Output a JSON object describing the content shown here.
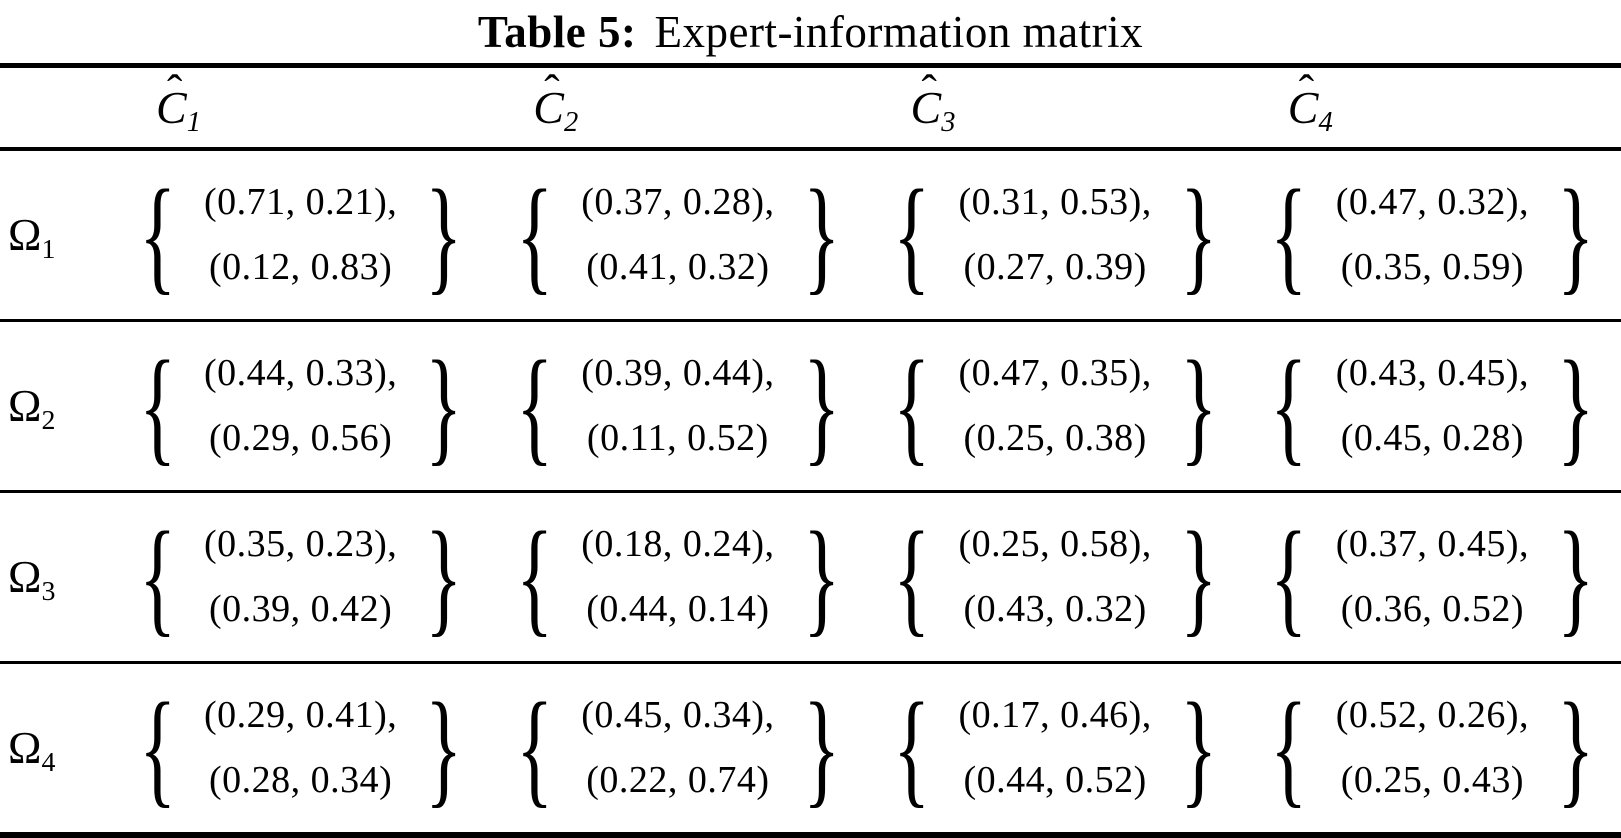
{
  "title": {
    "tag": "Table 5:",
    "text": "Expert-information matrix"
  },
  "colors": {
    "text": "#000000",
    "background": "#ffffff",
    "rule": "#000000"
  },
  "table": {
    "brace_open": "{",
    "brace_close": "}",
    "columns": [
      {
        "base": "C",
        "hat": "ˆ",
        "sub": "1"
      },
      {
        "base": "C",
        "hat": "ˆ",
        "sub": "2"
      },
      {
        "base": "C",
        "hat": "ˆ",
        "sub": "3"
      },
      {
        "base": "C",
        "hat": "ˆ",
        "sub": "4"
      }
    ],
    "rows": [
      {
        "label": {
          "base": "Ω",
          "sub": "1"
        },
        "cells": [
          {
            "line1": "(0.71, 0.21),",
            "line2": "(0.12, 0.83)"
          },
          {
            "line1": "(0.37, 0.28),",
            "line2": "(0.41, 0.32)"
          },
          {
            "line1": "(0.31, 0.53),",
            "line2": "(0.27, 0.39)"
          },
          {
            "line1": "(0.47, 0.32),",
            "line2": "(0.35, 0.59)"
          }
        ]
      },
      {
        "label": {
          "base": "Ω",
          "sub": "2"
        },
        "cells": [
          {
            "line1": "(0.44, 0.33),",
            "line2": "(0.29, 0.56)"
          },
          {
            "line1": "(0.39, 0.44),",
            "line2": "(0.11, 0.52)"
          },
          {
            "line1": "(0.47, 0.35),",
            "line2": "(0.25, 0.38)"
          },
          {
            "line1": "(0.43, 0.45),",
            "line2": "(0.45, 0.28)"
          }
        ]
      },
      {
        "label": {
          "base": "Ω",
          "sub": "3"
        },
        "cells": [
          {
            "line1": "(0.35, 0.23),",
            "line2": "(0.39, 0.42)"
          },
          {
            "line1": "(0.18, 0.24),",
            "line2": "(0.44, 0.14)"
          },
          {
            "line1": "(0.25, 0.58),",
            "line2": "(0.43, 0.32)"
          },
          {
            "line1": "(0.37, 0.45),",
            "line2": "(0.36, 0.52)"
          }
        ]
      },
      {
        "label": {
          "base": "Ω",
          "sub": "4"
        },
        "cells": [
          {
            "line1": "(0.29, 0.41),",
            "line2": "(0.28, 0.34)"
          },
          {
            "line1": "(0.45, 0.34),",
            "line2": "(0.22, 0.74)"
          },
          {
            "line1": "(0.17, 0.46),",
            "line2": "(0.44, 0.52)"
          },
          {
            "line1": "(0.52, 0.26),",
            "line2": "(0.25, 0.43)"
          }
        ]
      }
    ]
  }
}
